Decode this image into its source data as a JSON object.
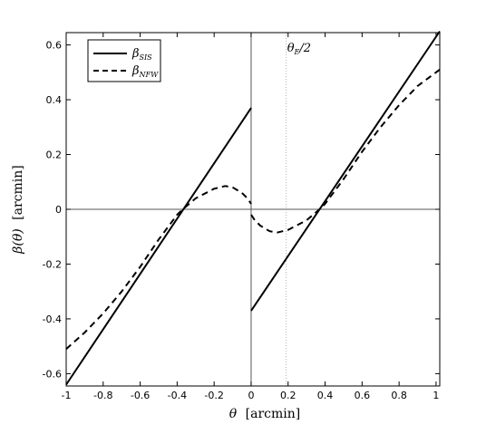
{
  "chart_data": {
    "type": "line",
    "xlabel_symbol": "θ",
    "xlabel_unit": "[arcmin]",
    "ylabel_symbol": "β(θ)",
    "ylabel_unit": "[arcmin]",
    "xlim": [
      -1,
      1.02
    ],
    "ylim": [
      -0.645,
      0.645
    ],
    "xticks": [
      -1,
      -0.8,
      -0.6,
      -0.4,
      -0.2,
      0,
      0.2,
      0.4,
      0.6,
      0.8,
      1
    ],
    "xtick_labels": [
      "-1",
      "-0.8",
      "-0.6",
      "-0.4",
      "-0.2",
      "0",
      "0.2",
      "0.4",
      "0.6",
      "0.8",
      "1"
    ],
    "yticks": [
      -0.6,
      -0.4,
      -0.2,
      0,
      0.2,
      0.4,
      0.6
    ],
    "ytick_labels": [
      "-0.6",
      "-0.4",
      "-0.2",
      "0",
      "0.2",
      "0.4",
      "0.6"
    ],
    "grid": false,
    "legend_position": "top-left",
    "annotation": {
      "base": "θ",
      "sub": "E",
      "rest": "/2",
      "x": 0.19
    },
    "series": [
      {
        "name_base": "β",
        "name_sub": "SIS",
        "style": "solid",
        "color": "#000000",
        "segments": [
          {
            "x": [
              -1,
              0
            ],
            "y": [
              -0.64,
              0.37
            ]
          },
          {
            "x": [
              0,
              1.02
            ],
            "y": [
              -0.37,
              0.65
            ]
          }
        ]
      },
      {
        "name_base": "β",
        "name_sub": "NFW",
        "style": "dashed",
        "color": "#000000",
        "segments": [
          {
            "x": [
              -1,
              -0.9,
              -0.8,
              -0.7,
              -0.6,
              -0.5,
              -0.4,
              -0.37,
              -0.3,
              -0.2,
              -0.14,
              -0.1,
              -0.05,
              -0.02,
              0
            ],
            "y": [
              -0.51,
              -0.45,
              -0.38,
              -0.3,
              -0.21,
              -0.11,
              -0.02,
              0,
              0.04,
              0.075,
              0.085,
              0.08,
              0.06,
              0.04,
              0.02
            ]
          },
          {
            "x": [
              0,
              0.02,
              0.05,
              0.1,
              0.14,
              0.2,
              0.3,
              0.37,
              0.4,
              0.5,
              0.6,
              0.7,
              0.8,
              0.9,
              1.02
            ],
            "y": [
              -0.02,
              -0.04,
              -0.06,
              -0.08,
              -0.085,
              -0.075,
              -0.04,
              0,
              0.02,
              0.11,
              0.21,
              0.3,
              0.38,
              0.45,
              0.51
            ]
          }
        ]
      }
    ],
    "reference_lines": [
      {
        "orientation": "horizontal",
        "value": 0,
        "style": "solid",
        "color": "#555555"
      },
      {
        "orientation": "vertical",
        "value": 0,
        "style": "solid",
        "color": "#555555"
      },
      {
        "orientation": "vertical",
        "value": 0.19,
        "style": "dotted",
        "color": "#999999"
      }
    ]
  }
}
